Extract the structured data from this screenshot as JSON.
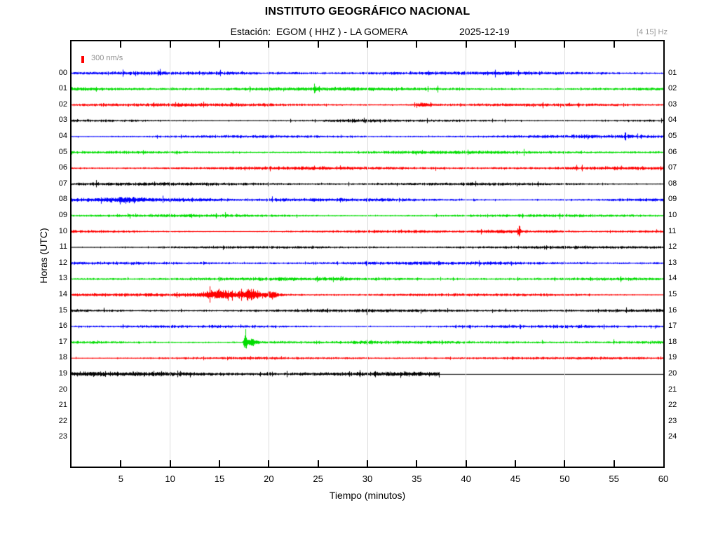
{
  "header": {
    "title": "INSTITUTO GEOGRÁFICO NACIONAL",
    "station_label": "Estación:",
    "station_value": "EGOM ( HHZ ) - LA GOMERA",
    "date": "2025-12-19",
    "filter_band": "[4 15] Hz"
  },
  "legend": {
    "label": "300 nm/s",
    "color": "#ff0000"
  },
  "colors": {
    "trace_blue": "#0000ff",
    "trace_green": "#00dd00",
    "trace_red": "#ff0000",
    "trace_black": "#000000",
    "grid": "#dcdcdc",
    "muted_text": "#9a9a9a"
  },
  "chart_data": {
    "type": "line",
    "subtype": "helicorder-seismogram",
    "title": "INSTITUTO GEOGRÁFICO NACIONAL",
    "xlabel": "Tiempo (minutos)",
    "ylabel": "Horas (UTC)",
    "x_range": [
      0,
      60
    ],
    "x_ticks": [
      5,
      10,
      15,
      20,
      25,
      30,
      35,
      40,
      45,
      50,
      55,
      60
    ],
    "x_gridlines": [
      10,
      20,
      30,
      40,
      50
    ],
    "grid": true,
    "legend_position": "top-left-inside",
    "amplitude_scale_label": "300 nm/s",
    "color_cycle": [
      "#0000ff",
      "#00dd00",
      "#ff0000",
      "#000000"
    ],
    "rows": [
      {
        "hour": "00",
        "right_label": "01",
        "color": "#0000ff",
        "base_amp": 1.6,
        "events": []
      },
      {
        "hour": "01",
        "right_label": "02",
        "color": "#00dd00",
        "base_amp": 1.7,
        "events": [
          {
            "t": 24.6,
            "w": 0.12,
            "a": 4.0
          }
        ]
      },
      {
        "hour": "02",
        "right_label": "03",
        "color": "#ff0000",
        "base_amp": 1.7,
        "events": [
          {
            "t": 35.6,
            "w": 0.9,
            "a": 1.6
          }
        ]
      },
      {
        "hour": "03",
        "right_label": "04",
        "color": "#000000",
        "base_amp": 1.3,
        "events": [
          {
            "t": 29.0,
            "w": 4.0,
            "a": 0.6
          }
        ]
      },
      {
        "hour": "04",
        "right_label": "05",
        "color": "#0000ff",
        "base_amp": 1.5,
        "events": []
      },
      {
        "hour": "05",
        "right_label": "06",
        "color": "#00dd00",
        "base_amp": 1.5,
        "events": []
      },
      {
        "hour": "06",
        "right_label": "07",
        "color": "#ff0000",
        "base_amp": 1.5,
        "events": []
      },
      {
        "hour": "07",
        "right_label": "08",
        "color": "#000000",
        "base_amp": 1.4,
        "events": []
      },
      {
        "hour": "08",
        "right_label": "09",
        "color": "#0000ff",
        "base_amp": 1.7,
        "events": [
          {
            "t": 5.5,
            "w": 2.2,
            "a": 2.4
          },
          {
            "t": 11.0,
            "w": 4.0,
            "a": 1.0
          }
        ]
      },
      {
        "hour": "09",
        "right_label": "10",
        "color": "#00dd00",
        "base_amp": 1.5,
        "events": []
      },
      {
        "hour": "10",
        "right_label": "11",
        "color": "#ff0000",
        "base_amp": 1.4,
        "events": [
          {
            "t": 43.5,
            "w": 2.2,
            "a": 1.1
          },
          {
            "t": 45.4,
            "w": 0.12,
            "a": 8.0
          },
          {
            "t": 48.5,
            "w": 2.0,
            "a": 0.7
          }
        ]
      },
      {
        "hour": "11",
        "right_label": "12",
        "color": "#000000",
        "base_amp": 1.3,
        "events": []
      },
      {
        "hour": "12",
        "right_label": "13",
        "color": "#0000ff",
        "base_amp": 1.5,
        "events": []
      },
      {
        "hour": "13",
        "right_label": "14",
        "color": "#00dd00",
        "base_amp": 1.5,
        "events": []
      },
      {
        "hour": "14",
        "right_label": "15",
        "color": "#ff0000",
        "base_amp": 1.5,
        "events": [
          {
            "t": 17.0,
            "w": 4.5,
            "a": 1.2
          },
          {
            "t": 14.8,
            "w": 1.3,
            "a": 4.2
          },
          {
            "t": 18.0,
            "w": 1.1,
            "a": 4.8
          },
          {
            "t": 20.3,
            "w": 0.5,
            "a": 3.2
          }
        ]
      },
      {
        "hour": "15",
        "right_label": "16",
        "color": "#000000",
        "base_amp": 1.5,
        "events": [
          {
            "t": 42.0,
            "w": 14.0,
            "a": 0.5
          }
        ]
      },
      {
        "hour": "16",
        "right_label": "17",
        "color": "#0000ff",
        "base_amp": 1.5,
        "events": []
      },
      {
        "hour": "17",
        "right_label": "18",
        "color": "#00dd00",
        "base_amp": 1.5,
        "events": [
          {
            "t": 17.6,
            "w": 0.13,
            "a": 13.0
          },
          {
            "t": 18.2,
            "w": 0.6,
            "a": 3.0
          },
          {
            "t": 20.0,
            "w": 2.5,
            "a": 0.7
          }
        ]
      },
      {
        "hour": "18",
        "right_label": "19",
        "color": "#ff0000",
        "base_amp": 1.2,
        "events": []
      },
      {
        "hour": "19",
        "right_label": "20",
        "color": "#000000",
        "base_amp": 2.2,
        "events": [],
        "data_end_min": 37.3,
        "flat_after": true
      },
      {
        "hour": "20",
        "right_label": "21",
        "no_data": true
      },
      {
        "hour": "21",
        "right_label": "22",
        "no_data": true
      },
      {
        "hour": "22",
        "right_label": "23",
        "no_data": true
      },
      {
        "hour": "23",
        "right_label": "24",
        "no_data": true
      }
    ]
  }
}
